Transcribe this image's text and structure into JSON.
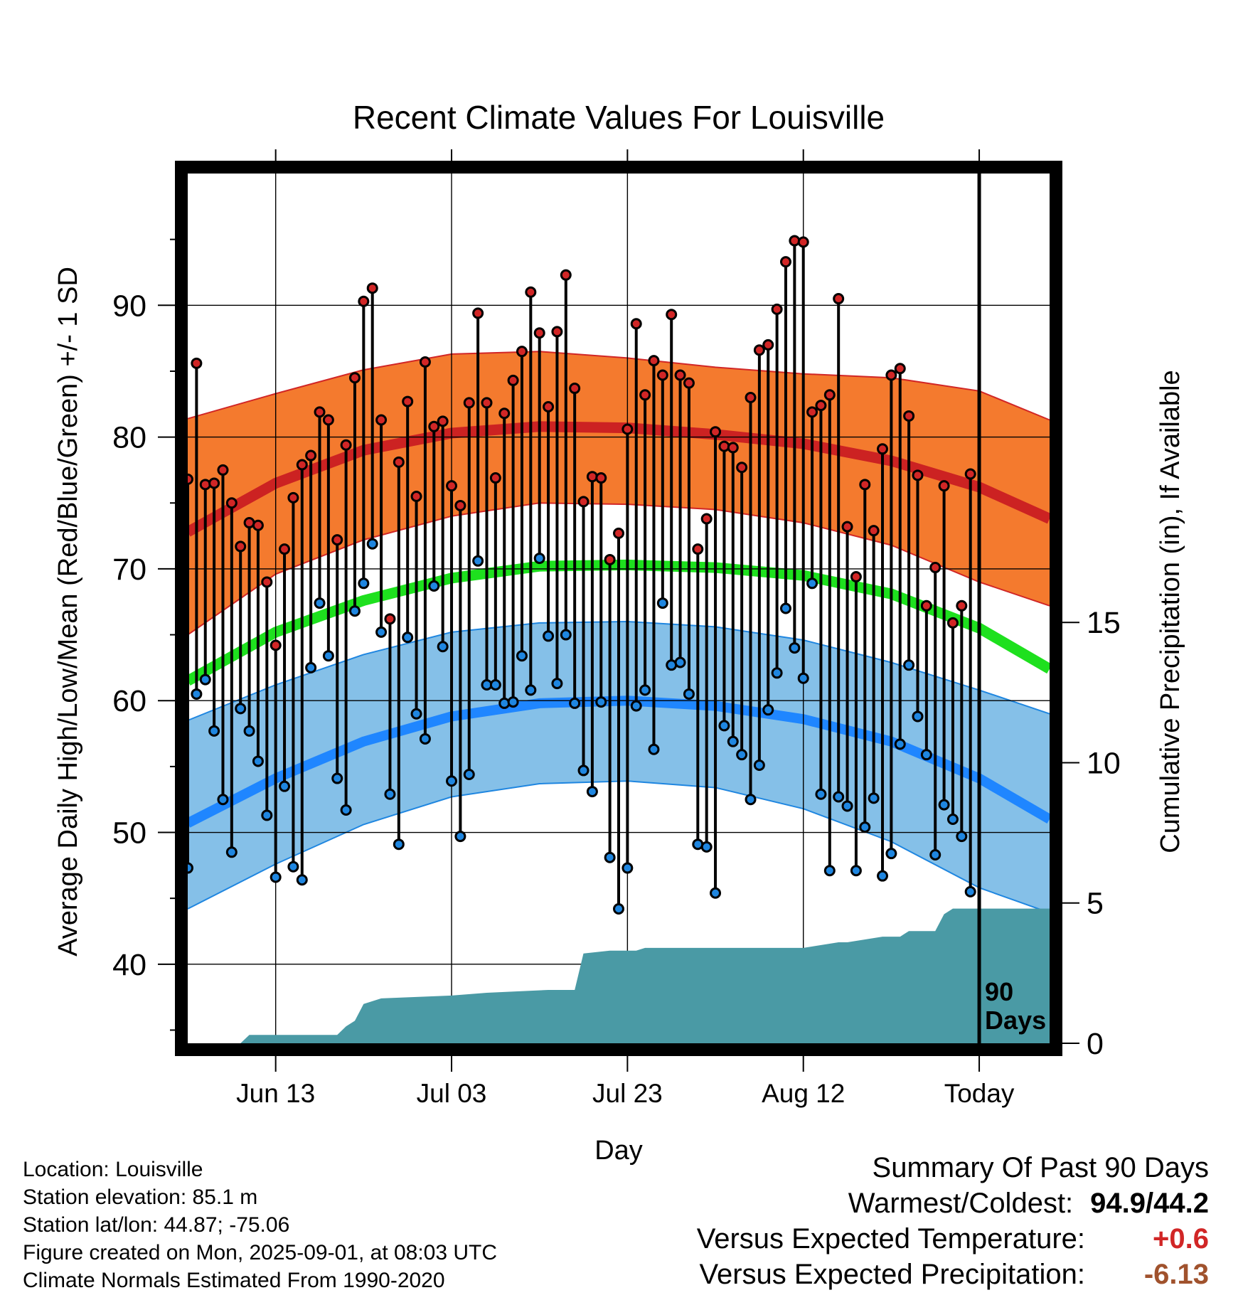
{
  "chart_data": {
    "type": "line",
    "title": "Recent Climate Values For Louisville",
    "xlabel": "Day",
    "ylabel": "Average Daily High/Low/Mean (Red/Blue/Green) +/- 1 SD",
    "y2label": "Cumulative Precipitation (in), If Available",
    "ylim": [
      34,
      100
    ],
    "y2lim": [
      0,
      31
    ],
    "x_day_range": [
      -88,
      10
    ],
    "x_ticks": [
      {
        "day": -78,
        "label": "Jun 13"
      },
      {
        "day": -58,
        "label": "Jul 03"
      },
      {
        "day": -38,
        "label": "Jul 23"
      },
      {
        "day": -18,
        "label": "Aug 12"
      },
      {
        "day": 2,
        "label": "Today"
      }
    ],
    "y_ticks": [
      40,
      50,
      60,
      70,
      80,
      90
    ],
    "y2_ticks": [
      0,
      5,
      10,
      15
    ],
    "grid": true,
    "window_label": "90\nDays",
    "normals": {
      "day": [
        -88,
        -78,
        -68,
        -58,
        -48,
        -38,
        -28,
        -18,
        -8,
        2,
        10
      ],
      "high_mean": [
        72.8,
        76.5,
        79.0,
        80.3,
        80.8,
        80.7,
        80.2,
        79.5,
        78.2,
        76.2,
        73.8
      ],
      "high_sd_upper": [
        81.4,
        83.3,
        85.1,
        86.3,
        86.5,
        86.0,
        85.3,
        84.8,
        84.5,
        83.5,
        81.3
      ],
      "high_sd_lower": [
        65.0,
        69.6,
        72.2,
        74.0,
        75.0,
        74.9,
        74.5,
        73.5,
        71.8,
        69.0,
        67.2
      ],
      "mean": [
        61.5,
        65.2,
        67.6,
        69.3,
        70.2,
        70.3,
        70.1,
        69.5,
        68.1,
        65.5,
        62.4
      ],
      "low_mean": [
        50.7,
        54.1,
        56.9,
        58.8,
        59.8,
        60.0,
        59.6,
        58.6,
        56.9,
        54.1,
        51.0
      ],
      "low_sd_upper": [
        58.5,
        61.2,
        63.5,
        65.2,
        65.9,
        66.0,
        65.6,
        64.6,
        62.9,
        60.8,
        59.0
      ],
      "low_sd_lower": [
        44.2,
        47.6,
        50.6,
        52.7,
        53.7,
        53.9,
        53.4,
        51.8,
        49.3,
        45.8,
        43.9
      ]
    },
    "series": [
      {
        "name": "Daily High",
        "color": "#d12626",
        "x": [
          -88,
          -87,
          -86,
          -85,
          -84,
          -83,
          -82,
          -81,
          -80,
          -79,
          -78,
          -77,
          -76,
          -75,
          -74,
          -73,
          -72,
          -71,
          -70,
          -69,
          -68,
          -67,
          -66,
          -65,
          -64,
          -63,
          -62,
          -61,
          -60,
          -59,
          -58,
          -57,
          -56,
          -55,
          -54,
          -53,
          -52,
          -51,
          -50,
          -49,
          -48,
          -47,
          -46,
          -45,
          -44,
          -43,
          -42,
          -41,
          -40,
          -39,
          -38,
          -37,
          -36,
          -35,
          -34,
          -33,
          -32,
          -31,
          -30,
          -29,
          -28,
          -27,
          -26,
          -25,
          -24,
          -23,
          -22,
          -21,
          -20,
          -19,
          -18,
          -17,
          -16,
          -15,
          -14,
          -13,
          -12,
          -11,
          -10,
          -9,
          -8,
          -7,
          -6,
          -5,
          -4,
          -3,
          -2,
          -1,
          0,
          1
        ],
        "values": [
          76.8,
          85.6,
          76.4,
          76.5,
          77.5,
          75.0,
          71.7,
          73.5,
          73.3,
          69.0,
          64.2,
          71.5,
          75.4,
          77.9,
          78.6,
          81.9,
          81.3,
          72.2,
          79.4,
          84.5,
          90.3,
          91.3,
          81.3,
          66.2,
          78.1,
          82.7,
          75.5,
          85.7,
          80.8,
          81.2,
          76.3,
          74.8,
          82.6,
          89.4,
          82.6,
          76.9,
          81.8,
          84.3,
          86.5,
          91.0,
          87.9,
          82.3,
          88.0,
          92.3,
          83.7,
          75.1,
          77.0,
          76.9,
          70.7,
          72.7,
          80.6,
          88.6,
          83.2,
          85.8,
          84.7,
          89.3,
          84.7,
          84.1,
          71.5,
          73.8,
          80.4,
          79.3,
          79.2,
          77.7,
          83.0,
          86.6,
          87.0,
          89.7,
          93.3,
          94.9,
          94.8,
          81.9,
          82.4,
          83.2,
          90.5,
          73.2,
          69.4,
          76.4,
          72.9,
          79.1,
          84.7,
          85.2,
          81.6,
          77.1,
          67.2,
          70.1,
          76.3,
          65.9,
          67.2,
          77.2
        ]
      },
      {
        "name": "Daily Low",
        "color": "#1f86e0",
        "x": [
          -88,
          -87,
          -86,
          -85,
          -84,
          -83,
          -82,
          -81,
          -80,
          -79,
          -78,
          -77,
          -76,
          -75,
          -74,
          -73,
          -72,
          -71,
          -70,
          -69,
          -68,
          -67,
          -66,
          -65,
          -64,
          -63,
          -62,
          -61,
          -60,
          -59,
          -58,
          -57,
          -56,
          -55,
          -54,
          -53,
          -52,
          -51,
          -50,
          -49,
          -48,
          -47,
          -46,
          -45,
          -44,
          -43,
          -42,
          -41,
          -40,
          -39,
          -38,
          -37,
          -36,
          -35,
          -34,
          -33,
          -32,
          -31,
          -30,
          -29,
          -28,
          -27,
          -26,
          -25,
          -24,
          -23,
          -22,
          -21,
          -20,
          -19,
          -18,
          -17,
          -16,
          -15,
          -14,
          -13,
          -12,
          -11,
          -10,
          -9,
          -8,
          -7,
          -6,
          -5,
          -4,
          -3,
          -2,
          -1,
          0,
          1
        ],
        "values": [
          47.3,
          60.5,
          61.6,
          57.7,
          52.5,
          48.5,
          59.4,
          57.7,
          55.4,
          51.3,
          46.6,
          53.5,
          47.4,
          46.4,
          62.5,
          67.4,
          63.4,
          54.1,
          51.7,
          66.8,
          68.9,
          71.9,
          65.2,
          52.9,
          49.1,
          64.8,
          59.0,
          57.1,
          68.7,
          64.1,
          53.9,
          49.7,
          54.4,
          70.6,
          61.2,
          61.2,
          59.8,
          59.9,
          63.4,
          60.8,
          70.8,
          64.9,
          61.3,
          65.0,
          59.8,
          54.7,
          53.1,
          59.9,
          48.1,
          44.2,
          47.3,
          59.6,
          60.8,
          56.3,
          67.4,
          62.7,
          62.9,
          60.5,
          49.1,
          48.9,
          45.4,
          58.1,
          56.9,
          55.9,
          52.5,
          55.1,
          59.3,
          62.1,
          67.0,
          64.0,
          61.7,
          68.9,
          52.9,
          47.1,
          52.7,
          52.0,
          47.1,
          50.4,
          52.6,
          46.7,
          48.4,
          56.7,
          62.7,
          58.8,
          55.9,
          48.3,
          52.1,
          51.0,
          49.7,
          45.5
        ]
      }
    ],
    "precipitation": {
      "name": "Cumulative Precipitation",
      "color": "#4a9aa5",
      "x": [
        -88,
        -82,
        -81,
        -71,
        -70,
        -69,
        -68,
        -66,
        -58,
        -54,
        -47,
        -44,
        -43,
        -40,
        -37,
        -36,
        -18,
        -14,
        -13,
        -9,
        -7,
        -6,
        -5,
        -3,
        -2,
        -1,
        10
      ],
      "values": [
        0,
        0,
        0.3,
        0.3,
        0.6,
        0.8,
        1.4,
        1.6,
        1.7,
        1.8,
        1.9,
        1.9,
        3.2,
        3.3,
        3.3,
        3.4,
        3.4,
        3.6,
        3.6,
        3.8,
        3.8,
        4.0,
        4.0,
        4.0,
        4.6,
        4.8,
        4.8
      ]
    }
  },
  "footer": {
    "location": "Location: Louisville",
    "elevation": "Station elevation: 85.1 m",
    "latlon": "Station lat/lon: 44.87; -75.06",
    "created": "Figure created on Mon, 2025-09-01, at 08:03 UTC",
    "normals_period": "Climate Normals Estimated From 1990-2020"
  },
  "summary": {
    "heading": "Summary Of Past 90 Days",
    "warmest_coldest_label": "Warmest/Coldest:",
    "warmest_coldest_value": "94.9/44.2",
    "temp_label": "Versus Expected Temperature:",
    "temp_value": "+0.6",
    "temp_color": "#d12626",
    "precip_label": "Versus Expected Precipitation:",
    "precip_value": "-6.13",
    "precip_color": "#a0522d"
  }
}
